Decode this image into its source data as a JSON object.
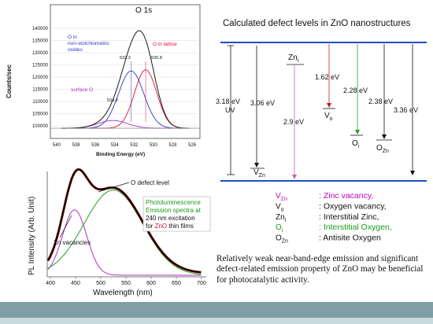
{
  "xps": {
    "title": "O 1s",
    "ylabel": "Counts/sec",
    "xlabel": "Binding Energy (eV)",
    "y_ticks": [
      "140000",
      "135000",
      "130000",
      "125000",
      "120000",
      "115000",
      "110000",
      "105000",
      "100000"
    ],
    "x_ticks": [
      "540",
      "538",
      "536",
      "534",
      "532",
      "530",
      "528",
      "526"
    ],
    "label_nonstoich_1": "O in",
    "label_nonstoich_2": "non-stoichiometric",
    "label_nonstoich_3": "oxides",
    "label_lattice": "O in lattice",
    "label_surface": "surface O",
    "peak_5323": "532.3",
    "peak_5308": "530.8",
    "peak_5342": "534.2"
  },
  "pl": {
    "ylabel": "PL Intensity (Arb. Unit)",
    "xlabel": "Wavelength (nm)",
    "x_ticks": [
      "400",
      "450",
      "500",
      "550",
      "600",
      "650",
      "700"
    ],
    "defect_label": "O defect level",
    "zn_label": "Zn vacancies",
    "info_line1": "Photoluminescence",
    "info_line2": "Emission spectra at",
    "info_line3": "240 nm excitation",
    "info_line4_prefix": "for ",
    "info_line4_zno": "ZnO",
    "info_line4_suffix": " thin films"
  },
  "defects": {
    "title": "Calculated defect levels in ZnO nanostructures",
    "e_318": "3.18 eV",
    "e_uv": "UV",
    "e_306": "3.06 eV",
    "e_29": "2.9 eV",
    "e_162": "1.62 eV",
    "e_228": "2.28 eV",
    "e_238": "2.38 eV",
    "e_336": "3.36 eV",
    "lvl_vzn_main": "V",
    "lvl_vzn_sub": "Zn",
    "lvl_zni_main": "Zn",
    "lvl_zni_sub": "i",
    "lvl_vo_main": "V",
    "lvl_vo_sub": "o",
    "lvl_oi_main": "O",
    "lvl_oi_sub": "i",
    "lvl_ozn_main": "O",
    "lvl_ozn_sub": "Zn"
  },
  "legend": [
    {
      "sym": "V",
      "sub": "Zn",
      "desc": ": Zinc vacancy,",
      "color": "#c000c0",
      "desc_color": "#c000c0"
    },
    {
      "sym": "V",
      "sub": "o",
      "desc": ": Oxygen vacancy,",
      "color": "#111111",
      "desc_color": "#111111"
    },
    {
      "sym": "Zn",
      "sub": "i",
      "desc": ": Interstitial Zinc,",
      "color": "#111111",
      "desc_color": "#111111"
    },
    {
      "sym": "O",
      "sub": "i",
      "desc": ": Interstitial Oxygen,",
      "color": "#1a9a1a",
      "desc_color": "#1a9a1a"
    },
    {
      "sym": "O",
      "sub": "Zn",
      "desc": ": Antisite Oxygen",
      "color": "#111111",
      "desc_color": "#111111"
    }
  ],
  "note": "Relatively weak near-band-edge emission and significant defect-related emission property of ZnO may be beneficial for photocatalytic activity.",
  "colors": {
    "red": "#e0103a",
    "blue": "#2a3ab8",
    "magenta": "#b030c0",
    "green": "#20a020",
    "band": "#2050c0",
    "bar": "#7f9fa5"
  }
}
